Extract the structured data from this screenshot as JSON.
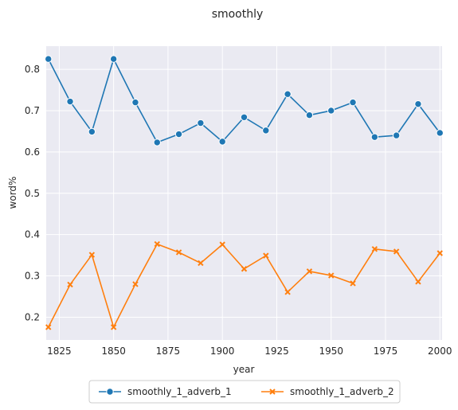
{
  "chart_data": {
    "type": "line",
    "title": "smoothly",
    "xlabel": "year",
    "ylabel": "word%",
    "x": [
      1820,
      1830,
      1840,
      1850,
      1860,
      1870,
      1880,
      1890,
      1900,
      1910,
      1920,
      1930,
      1940,
      1950,
      1960,
      1970,
      1980,
      1990,
      2000
    ],
    "series": [
      {
        "name": "smoothly_1_adverb_1",
        "color": "#1f77b4",
        "marker": "circle",
        "values": [
          0.825,
          0.722,
          0.649,
          0.825,
          0.72,
          0.623,
          0.643,
          0.67,
          0.625,
          0.684,
          0.652,
          0.74,
          0.689,
          0.7,
          0.72,
          0.636,
          0.64,
          0.716,
          0.646
        ]
      },
      {
        "name": "smoothly_1_adverb_2",
        "color": "#ff7f0e",
        "marker": "x",
        "values": [
          0.176,
          0.279,
          0.351,
          0.176,
          0.28,
          0.377,
          0.357,
          0.331,
          0.376,
          0.317,
          0.349,
          0.261,
          0.311,
          0.301,
          0.282,
          0.365,
          0.359,
          0.286,
          0.355
        ]
      }
    ],
    "xlim": [
      1819,
      2001
    ],
    "ylim": [
      0.145,
      0.856
    ],
    "xticks": [
      1825,
      1850,
      1875,
      1900,
      1925,
      1950,
      1975,
      2000
    ],
    "yticks": [
      0.2,
      0.3,
      0.4,
      0.5,
      0.6,
      0.7,
      0.8
    ],
    "xtick_labels": [
      "1825",
      "1850",
      "1875",
      "1900",
      "1925",
      "1950",
      "1975",
      "2000"
    ],
    "ytick_labels": [
      "0.2",
      "0.3",
      "0.4",
      "0.5",
      "0.6",
      "0.7",
      "0.8"
    ],
    "grid": true,
    "background": "#eaeaf2",
    "legend_position": "bottom-center"
  }
}
